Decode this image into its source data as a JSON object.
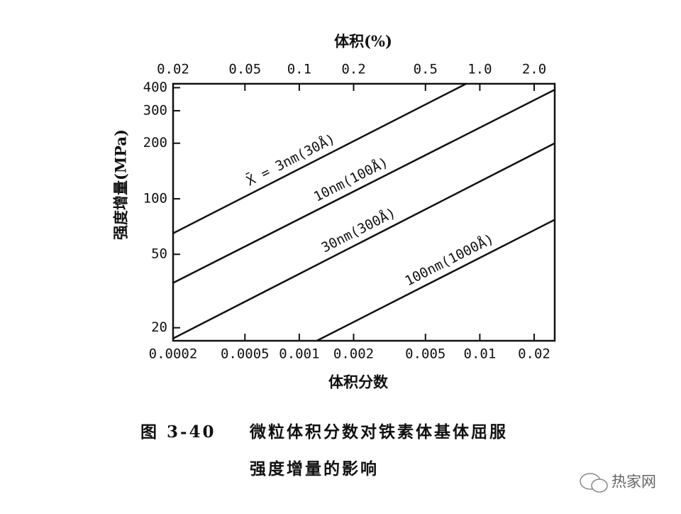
{
  "chart_data": {
    "type": "line",
    "x2_label": "体积(%)",
    "xlabel": "体积分数",
    "ylabel": "强度增量(MPa)",
    "log_x": true,
    "log_y": true,
    "xlim": [
      0.0002,
      0.026
    ],
    "xticks": [
      0.0002,
      0.0005,
      0.001,
      0.002,
      0.005,
      0.01,
      0.02
    ],
    "x2lim": [
      0.02,
      2.6
    ],
    "x2ticks": [
      0.02,
      0.05,
      0.1,
      0.2,
      0.5,
      {
        "value": 1,
        "label": "1.0"
      },
      {
        "value": 2,
        "label": "2.0"
      }
    ],
    "ylim": [
      17,
      420
    ],
    "yticks": [
      20,
      50,
      100,
      200,
      300,
      400
    ],
    "series": [
      {
        "name": "X̄ = 3nm(30Å)",
        "color": "#111111",
        "x": [
          0.0002,
          0.0084
        ],
        "values": [
          65,
          420
        ]
      },
      {
        "name": "10nm(100Å)",
        "color": "#111111",
        "x": [
          0.0002,
          0.026
        ],
        "values": [
          35,
          390
        ]
      },
      {
        "name": "30nm(300Å)",
        "color": "#111111",
        "x": [
          0.0002,
          0.026
        ],
        "values": [
          17.5,
          200
        ]
      },
      {
        "name": "100nm(1000Å)",
        "color": "#111111",
        "x": [
          0.00125,
          0.026
        ],
        "values": [
          17,
          77
        ]
      }
    ]
  },
  "caption": {
    "figure": "图 3-40",
    "lines": [
      "微粒体积分数对铁素体基体屈服",
      "强度增量的影响"
    ]
  },
  "watermark": "热家网"
}
